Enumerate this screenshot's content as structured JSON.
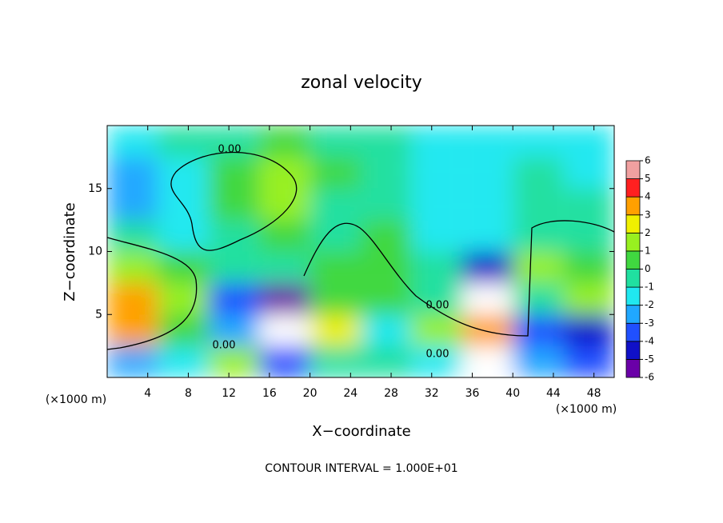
{
  "chart_data": {
    "type": "heatmap",
    "title": "zonal velocity",
    "x_label": "X−coordinate",
    "y_label": "Z−coordinate",
    "x_unit": "(×1000 m)",
    "x_unit_right": "(×1000 m)",
    "footnote": "CONTOUR INTERVAL = 1.000E+01",
    "contour_labels": [
      "0.00",
      "0.00",
      "0.00",
      "0.00"
    ],
    "x": [
      2.5,
      7.5,
      12.5,
      17.5,
      22.5,
      27.5,
      32.5,
      37.5,
      42.5,
      47.5
    ],
    "y": [
      1.25,
      3.75,
      6.25,
      8.75,
      11.25,
      13.75,
      16.25,
      18.75
    ],
    "values": [
      [
        -2,
        -1,
        2,
        -3,
        0,
        0,
        -1,
        7,
        -2,
        -3
      ],
      [
        4,
        1,
        -2,
        -7,
        3,
        -1,
        2,
        4,
        -3,
        -4
      ],
      [
        3.5,
        2,
        -3,
        -5,
        1,
        0.5,
        0,
        -7,
        0,
        2
      ],
      [
        2,
        1,
        -0.5,
        0,
        0.5,
        0.5,
        -0.5,
        -4,
        1.5,
        1
      ],
      [
        -0.5,
        -1,
        0,
        0.5,
        0,
        0.5,
        -1,
        -1.5,
        0,
        0
      ],
      [
        -2,
        -1.5,
        1,
        1.5,
        0,
        -0.5,
        -1,
        -1.5,
        -0.5,
        -0.5
      ],
      [
        -2,
        -1,
        1,
        1.5,
        0.5,
        -0.5,
        -1,
        -1.5,
        -0.5,
        -1
      ],
      [
        -1,
        -0.5,
        0,
        0.5,
        0,
        -0.5,
        -1,
        -1.5,
        -1,
        -1.5
      ]
    ],
    "xlim": [
      0,
      50
    ],
    "ylim": [
      0,
      20
    ],
    "xticks": [
      4,
      8,
      12,
      16,
      20,
      24,
      28,
      32,
      36,
      40,
      44,
      48
    ],
    "yticks": [
      5,
      10,
      15
    ],
    "colorbar_ticks": [
      -6,
      -5,
      -4,
      -3,
      -2,
      -1,
      0,
      1,
      2,
      3,
      4,
      5,
      6
    ],
    "colors": [
      "#6a00a8",
      "#1010c8",
      "#2050ff",
      "#20a8ff",
      "#20e8f0",
      "#20e0a0",
      "#40d840",
      "#98f020",
      "#f0f000",
      "#ffa000",
      "#ff2020",
      "#f0a0a0"
    ],
    "out_of_range_color": "#ffffff"
  }
}
